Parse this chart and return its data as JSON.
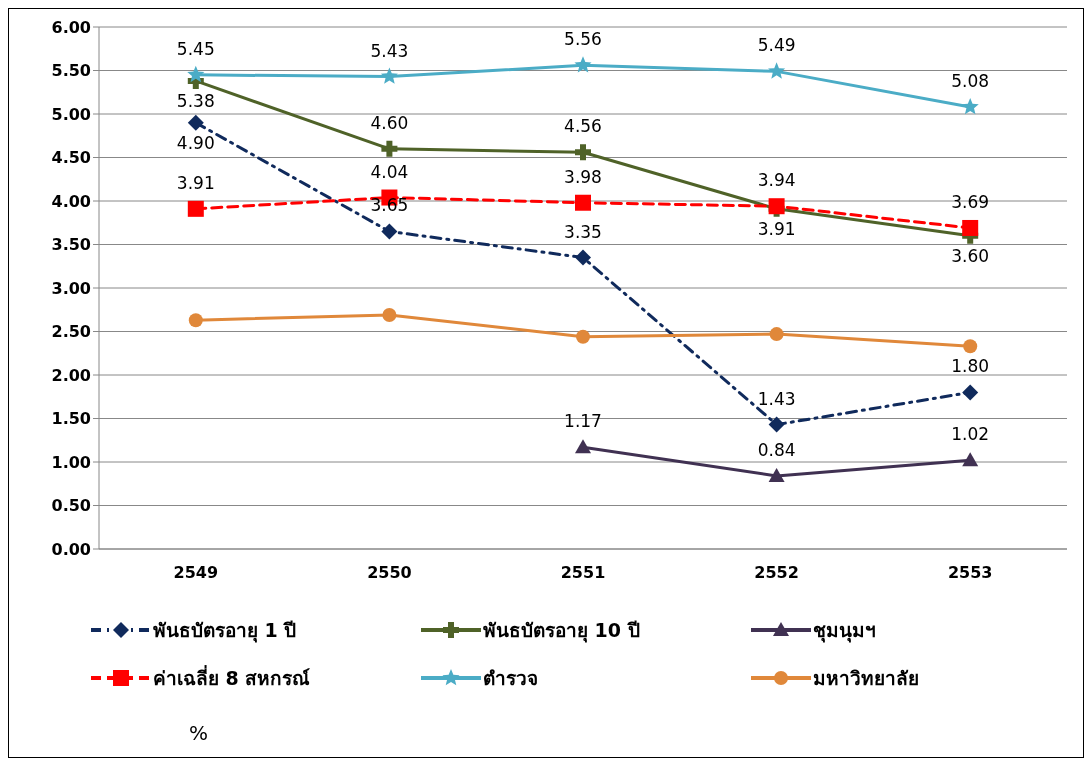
{
  "chart_data": {
    "type": "line",
    "categories": [
      "2549",
      "2550",
      "2551",
      "2552",
      "2553"
    ],
    "series": [
      {
        "name": "พันธบัตรอายุ 1 ปี",
        "color": "#102a5c",
        "marker": "diamond",
        "line_style": "dashdot",
        "values": [
          4.9,
          3.65,
          3.35,
          1.43,
          1.8
        ],
        "value_labels": [
          "4.90",
          "3.65",
          "3.35",
          "1.43",
          "1.80"
        ]
      },
      {
        "name": "พันธบัตรอายุ 10 ปี",
        "color": "#4f6228",
        "marker": "cross",
        "line_style": "solid",
        "values": [
          5.38,
          4.6,
          4.56,
          3.91,
          3.6
        ],
        "value_labels": [
          "5.38",
          "4.60",
          "4.56",
          "3.91",
          "3.60"
        ]
      },
      {
        "name": "ชุมนุมฯ",
        "color": "#403152",
        "marker": "triangle",
        "line_style": "solid",
        "values": [
          null,
          null,
          1.17,
          0.84,
          1.02
        ],
        "value_labels": [
          null,
          null,
          "1.17",
          "0.84",
          "1.02"
        ]
      },
      {
        "name": "ค่าเฉลี่ย 8 สหกรณ์",
        "color": "#ff0000",
        "marker": "square",
        "line_style": "dashed",
        "values": [
          3.91,
          4.04,
          3.98,
          3.94,
          3.69
        ],
        "value_labels": [
          "3.91",
          "4.04",
          "3.98",
          "3.94",
          "3.69"
        ]
      },
      {
        "name": "ตำรวจ",
        "color": "#4bacc6",
        "marker": "star",
        "line_style": "solid",
        "values": [
          5.45,
          5.43,
          5.56,
          5.49,
          5.08
        ],
        "value_labels": [
          "5.45",
          "5.43",
          "5.56",
          "5.49",
          "5.08"
        ]
      },
      {
        "name": "มหาวิทยาลัย",
        "color": "#e0883a",
        "marker": "circle",
        "line_style": "solid",
        "values": [
          2.63,
          2.69,
          2.44,
          2.47,
          2.33
        ]
      }
    ],
    "ylim": [
      0,
      6
    ],
    "yticks": [
      {
        "value": 0,
        "label": "0.00"
      },
      {
        "value": 0.5,
        "label": "0.50"
      },
      {
        "value": 1,
        "label": "1.00"
      },
      {
        "value": 1.5,
        "label": "1.50"
      },
      {
        "value": 2,
        "label": "2.00"
      },
      {
        "value": 2.5,
        "label": "2.50"
      },
      {
        "value": 3,
        "label": "3.00"
      },
      {
        "value": 3.5,
        "label": "3.50"
      },
      {
        "value": 4,
        "label": "4.00"
      },
      {
        "value": 4.5,
        "label": "4.50"
      },
      {
        "value": 5,
        "label": "5.00"
      },
      {
        "value": 5.5,
        "label": "5.50"
      },
      {
        "value": 6,
        "label": "6.00"
      }
    ],
    "grid": "y",
    "legend": "bottom",
    "annotations": [
      "%"
    ]
  }
}
